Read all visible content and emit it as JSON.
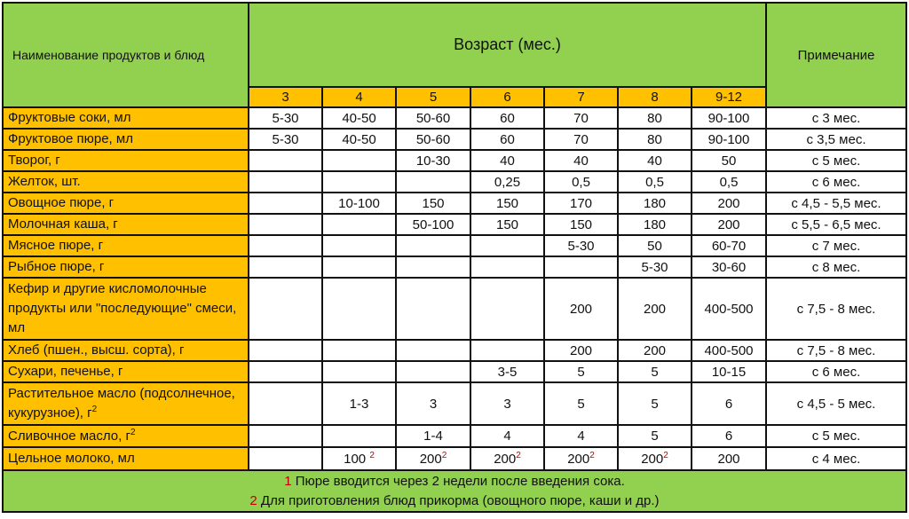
{
  "header": {
    "product_col": "Наименование продуктов и блюд",
    "age_group": "Возраст (мес.)",
    "note_col": "Примечание",
    "months": [
      "3",
      "4",
      "5",
      "6",
      "7",
      "8",
      "9-12"
    ]
  },
  "rows": [
    {
      "name": "Фруктовые соки, мл",
      "values": [
        "5-30",
        "40-50",
        "50-60",
        "60",
        "70",
        "80",
        "90-100"
      ],
      "note": "с 3 мес."
    },
    {
      "name": "Фруктовое пюре, мл",
      "values": [
        "5-30",
        "40-50",
        "50-60",
        "60",
        "70",
        "80",
        "90-100"
      ],
      "note": "с 3,5 мес."
    },
    {
      "name": "Творог, г",
      "values": [
        "",
        "",
        "10-30",
        "40",
        "40",
        "40",
        "50"
      ],
      "note": "с 5 мес."
    },
    {
      "name": "Желток, шт.",
      "values": [
        "",
        "",
        "",
        "0,25",
        "0,5",
        "0,5",
        "0,5"
      ],
      "note": "с 6 мес."
    },
    {
      "name": "Овощное пюре, г",
      "values": [
        "",
        "10-100",
        "150",
        "150",
        "170",
        "180",
        "200"
      ],
      "note": "с 4,5 - 5,5 мес."
    },
    {
      "name": "Молочная каша, г",
      "values": [
        "",
        "",
        "50-100",
        "150",
        "150",
        "180",
        "200"
      ],
      "note": "с 5,5 - 6,5 мес."
    },
    {
      "name": "Мясное пюре, г",
      "values": [
        "",
        "",
        "",
        "",
        "5-30",
        "50",
        "60-70"
      ],
      "note": "с 7 мес."
    },
    {
      "name": "Рыбное пюре, г",
      "values": [
        "",
        "",
        "",
        "",
        "",
        "5-30",
        "30-60"
      ],
      "note": "с 8 мес."
    },
    {
      "name": "Кефир и другие кисломолочные продукты или \"последующие\" смеси, мл",
      "values": [
        "",
        "",
        "",
        "",
        "200",
        "200",
        "400-500"
      ],
      "note": "с 7,5 - 8 мес."
    },
    {
      "name": "Хлеб (пшен., высш. сорта), г",
      "values": [
        "",
        "",
        "",
        "",
        "200",
        "200",
        "400-500"
      ],
      "note": "с 7,5 - 8 мес."
    },
    {
      "name": "Сухари, печенье, г",
      "values": [
        "",
        "",
        "",
        "3-5",
        "5",
        "5",
        "10-15"
      ],
      "note": "с 6 мес."
    },
    {
      "name": "Растительное масло (подсолнечное, кукурузное), г",
      "values": [
        "",
        "1-3",
        "3",
        "3",
        "5",
        "5",
        "6"
      ],
      "note": "с 4,5 - 5 мес."
    },
    {
      "name": "Сливочное масло, г",
      "values": [
        "",
        "",
        "1-4",
        "4",
        "4",
        "5",
        "6"
      ],
      "note": "с 5 мес."
    },
    {
      "name": "Цельное молоко, мл",
      "values": [
        "",
        "100",
        "200",
        "200",
        "200",
        "200",
        "200"
      ],
      "note": "с 4 мес."
    }
  ],
  "footnotes": [
    {
      "num": "1",
      "text": " Пюре вводится через 2 недели после введения сока."
    },
    {
      "num": "2",
      "text": " Для приготовления блюд прикорма (овощного пюре, каши и др.)"
    }
  ],
  "superscripts": {
    "oil_veg": "2",
    "oil_butter": "2",
    "milk_4": "2",
    "milk_5": "2",
    "milk_6": "2",
    "milk_7": "2",
    "milk_8": "2"
  },
  "colors": {
    "header_green": "#92d050",
    "name_orange": "#ffc000",
    "footnote_red": "#c00000"
  }
}
